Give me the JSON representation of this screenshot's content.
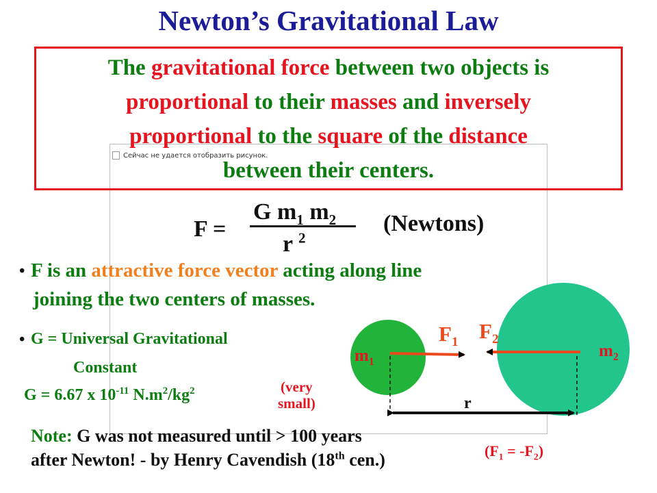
{
  "title": "Newton’s Gravitational Law",
  "image_placeholder": "Сейчас не удается отобразить рисунок.",
  "definition": [
    "The ",
    "gravitational force",
    " between two objects is",
    "proportional",
    " to their ",
    "masses",
    " and ",
    "inversely",
    "proportional",
    " to the ",
    "square",
    " of the ",
    "distance",
    "between their centers."
  ],
  "formula": {
    "lhs": "F =",
    "numerator": [
      "G m",
      "1",
      " m",
      "2"
    ],
    "denominator": [
      "r ",
      "2"
    ],
    "unit": "(Newtons)"
  },
  "bullet1": [
    "F is an ",
    "attractive force vector",
    " acting along line",
    "joining the two centers of masses."
  ],
  "bullet2": [
    "G = ",
    "Universal Gravitational",
    "Constant"
  ],
  "g_value": [
    "G = 6.67 x 10",
    "-11",
    " N.m",
    "2",
    "/kg",
    "2"
  ],
  "very_small": [
    "(very",
    "small)"
  ],
  "note": [
    "Note:",
    " G was not measured  until > 100 years",
    "after Newton! - by Henry Cavendish (18",
    "th",
    " cen.)"
  ],
  "diagram": {
    "f1": [
      "F",
      "1"
    ],
    "f2": [
      "F",
      "2"
    ],
    "m1": [
      "m",
      "1"
    ],
    "m2": [
      "m",
      "2"
    ],
    "r": "r",
    "relation": [
      "(F",
      "1",
      " = -F",
      "2",
      ")"
    ]
  }
}
